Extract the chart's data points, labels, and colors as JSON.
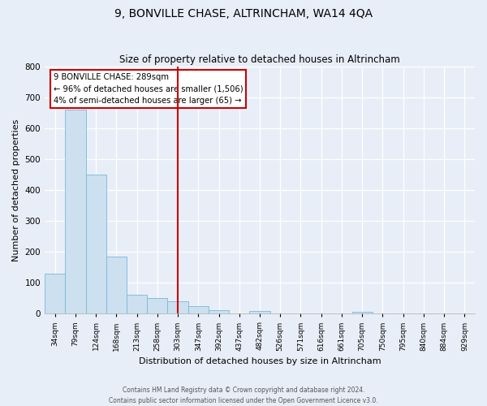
{
  "title": "9, BONVILLE CHASE, ALTRINCHAM, WA14 4QA",
  "subtitle": "Size of property relative to detached houses in Altrincham",
  "xlabel": "Distribution of detached houses by size in Altrincham",
  "ylabel": "Number of detached properties",
  "bin_labels": [
    "34sqm",
    "79sqm",
    "124sqm",
    "168sqm",
    "213sqm",
    "258sqm",
    "303sqm",
    "347sqm",
    "392sqm",
    "437sqm",
    "482sqm",
    "526sqm",
    "571sqm",
    "616sqm",
    "661sqm",
    "705sqm",
    "750sqm",
    "795sqm",
    "840sqm",
    "884sqm",
    "929sqm"
  ],
  "bar_heights": [
    130,
    660,
    450,
    185,
    60,
    50,
    40,
    25,
    12,
    0,
    8,
    0,
    0,
    0,
    0,
    5,
    0,
    0,
    0,
    0,
    0
  ],
  "bar_color": "#cce0f0",
  "bar_edge_color": "#7ab8d9",
  "vline_x": 6.0,
  "vline_color": "#cc0000",
  "annotation_title": "9 BONVILLE CHASE: 289sqm",
  "annotation_line1": "← 96% of detached houses are smaller (1,506)",
  "annotation_line2": "4% of semi-detached houses are larger (65) →",
  "annotation_box_edge_color": "#cc0000",
  "ylim": [
    0,
    800
  ],
  "yticks": [
    0,
    100,
    200,
    300,
    400,
    500,
    600,
    700,
    800
  ],
  "footer_line1": "Contains HM Land Registry data © Crown copyright and database right 2024.",
  "footer_line2": "Contains public sector information licensed under the Open Government Licence v3.0.",
  "bg_color": "#e8eef7",
  "plot_bg_color": "#e8eef7"
}
